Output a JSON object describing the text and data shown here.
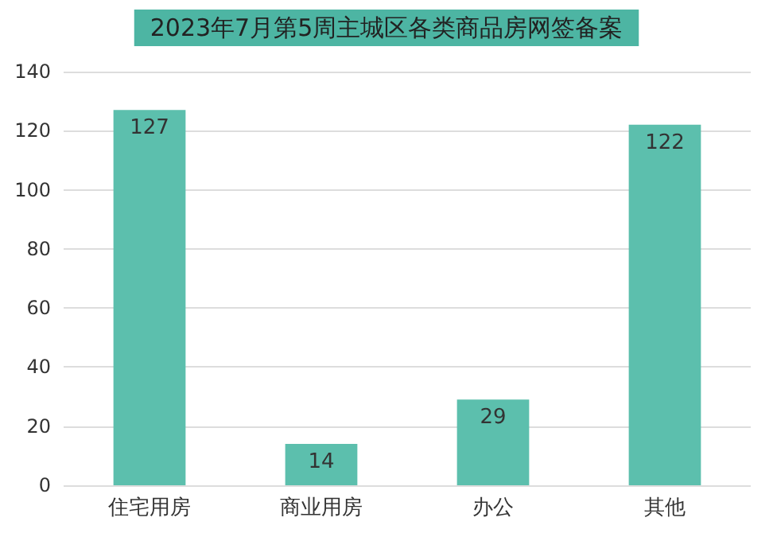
{
  "chart_data": {
    "type": "bar",
    "title": "2023年7月第5周主城区各类商品房网签备案",
    "categories": [
      "住宅用房",
      "商业用房",
      "办公",
      "其他"
    ],
    "values": [
      127,
      14,
      29,
      122
    ],
    "color": "#5cbfad",
    "ylim": [
      0,
      140
    ],
    "yticks": [
      0,
      20,
      40,
      60,
      80,
      100,
      120,
      140
    ],
    "grid": "y",
    "data_labels": true
  }
}
